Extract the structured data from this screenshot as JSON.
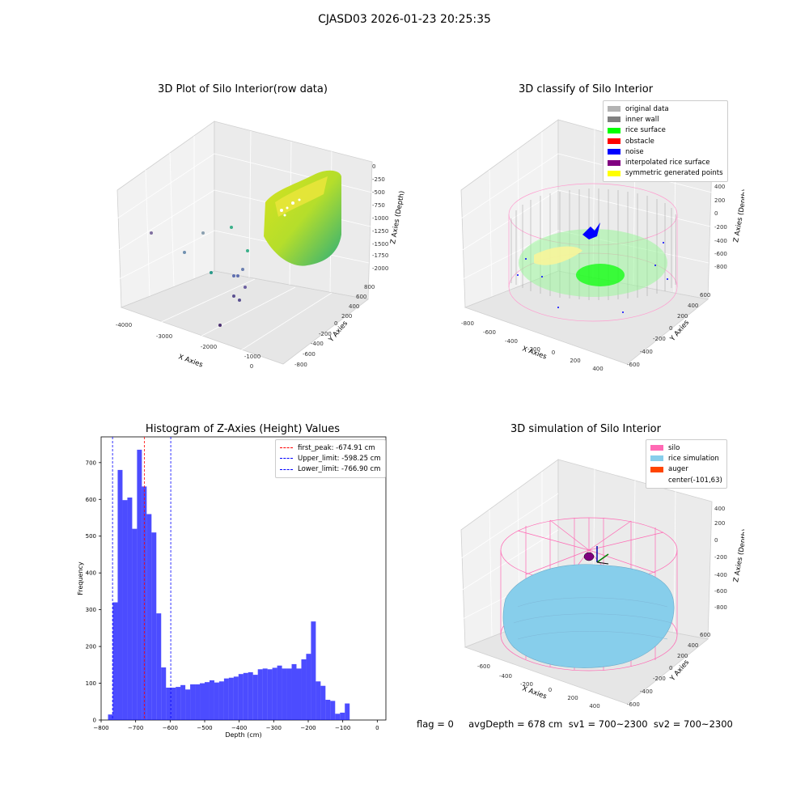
{
  "suptitle": "CJASD03 2026-01-23 20:25:35",
  "plots": {
    "raw": {
      "title": "3D Plot of Silo Interior(row data)",
      "xlabel": "X Axies",
      "ylabel": "Y Axies",
      "zlabel": "Z Axies (Depth)",
      "xticks": [
        "-4000",
        "-3000",
        "-2000",
        "-1000",
        "0"
      ],
      "yticks": [
        "800",
        "600",
        "400",
        "200",
        "0",
        "-200",
        "-400",
        "-600",
        "-800"
      ],
      "zticks": [
        "0",
        "-250",
        "-500",
        "-750",
        "-1000",
        "-1250",
        "-1500",
        "-1750",
        "-2000"
      ]
    },
    "classify": {
      "title": "3D classify of Silo Interior",
      "xlabel": "X Axies",
      "ylabel": "Y Axies",
      "zlabel": "Z Axies (Depth)",
      "xticks": [
        "-800",
        "-600",
        "-400",
        "-200",
        "0",
        "200",
        "400"
      ],
      "yticks": [
        "600",
        "400",
        "200",
        "0",
        "-200",
        "-400",
        "-600"
      ],
      "zticks": [
        "400",
        "200",
        "0",
        "-200",
        "-400",
        "-600",
        "-800"
      ],
      "legend": [
        {
          "label": "original data",
          "color": "#b3b3b3"
        },
        {
          "label": "inner wall",
          "color": "#808080"
        },
        {
          "label": "rice surface",
          "color": "#00ff00"
        },
        {
          "label": "obstacle",
          "color": "#ff0000"
        },
        {
          "label": "noise",
          "color": "#0000ff"
        },
        {
          "label": "interpolated rice surface",
          "color": "#800080"
        },
        {
          "label": "symmetric generated points",
          "color": "#ffff00"
        }
      ]
    },
    "simulation": {
      "title": "3D simulation of Silo Interior",
      "xlabel": "X Axies",
      "ylabel": "Y Axies",
      "zlabel": "Z Axies (Depth)",
      "xticks": [
        "-600",
        "-400",
        "-200",
        "0",
        "200",
        "400"
      ],
      "yticks": [
        "600",
        "400",
        "200",
        "0",
        "-200",
        "-400",
        "-600"
      ],
      "zticks": [
        "400",
        "200",
        "0",
        "-200",
        "-400",
        "-600",
        "-800"
      ],
      "legend": [
        {
          "label": "silo",
          "color": "#ff69b4"
        },
        {
          "label": "rice simulation",
          "color": "#87ceeb"
        },
        {
          "label": "auger",
          "color": "#ff4500"
        },
        {
          "label": "center(-101,63)",
          "color": ""
        }
      ]
    }
  },
  "footer": "flag = 0     avgDepth = 678 cm  sv1 = 700~2300  sv2 = 700~2300",
  "chart_data": {
    "type": "bar",
    "title": "Histogram of Z-Axies (Height) Values",
    "xlabel": "Depth (cm)",
    "ylabel": "Frequency",
    "xlim": [
      -800,
      25
    ],
    "ylim": [
      0,
      770
    ],
    "xticks": [
      -800,
      -700,
      -600,
      -500,
      -400,
      -300,
      -200,
      -100,
      0
    ],
    "yticks": [
      0,
      100,
      200,
      300,
      400,
      500,
      600,
      700
    ],
    "bin_width": 14,
    "bin_start": -780,
    "values": [
      15,
      320,
      680,
      598,
      605,
      520,
      735,
      635,
      560,
      510,
      290,
      143,
      88,
      88,
      90,
      95,
      83,
      97,
      97,
      100,
      103,
      108,
      102,
      105,
      113,
      115,
      118,
      125,
      128,
      130,
      123,
      138,
      140,
      138,
      142,
      148,
      140,
      140,
      152,
      140,
      165,
      180,
      268,
      105,
      93,
      55,
      52,
      17,
      20,
      45
    ],
    "color": "#0000ff",
    "lines": [
      {
        "label": "first_peak: -674.91 cm",
        "x": -674.91,
        "color": "#ff0000"
      },
      {
        "label": "Upper_limit: -598.25 cm",
        "x": -598.25,
        "color": "#0000ff"
      },
      {
        "label": "Lower_limit: -766.90 cm",
        "x": -766.9,
        "color": "#0000ff"
      }
    ]
  }
}
